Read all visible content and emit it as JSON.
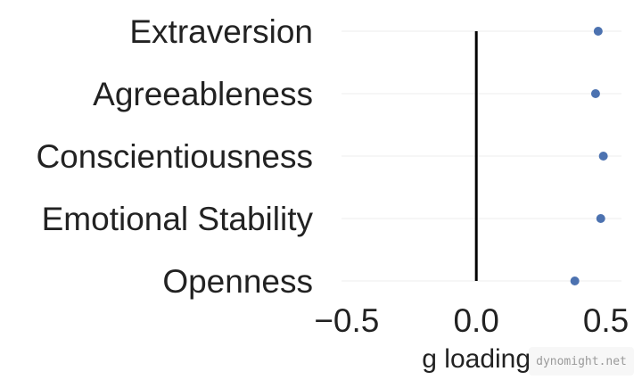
{
  "chart_data": {
    "type": "scatter",
    "categories": [
      "Extraversion",
      "Agreeableness",
      "Conscientiousness",
      "Emotional Stability",
      "Openness"
    ],
    "values": [
      0.47,
      0.46,
      0.49,
      0.48,
      0.38
    ],
    "xlabel": "g loading",
    "xlim": [
      -0.52,
      0.56
    ],
    "xticks": [
      -0.5,
      0.0,
      0.5
    ],
    "xtick_labels": [
      "−0.5",
      "0.0",
      "0.5"
    ],
    "reference_line": 0.0,
    "grid": "horizontal",
    "colors": {
      "point": "#4c72b0",
      "grid": "#eeeeee",
      "reference": "#000000"
    }
  },
  "watermark": "dynomight.net"
}
